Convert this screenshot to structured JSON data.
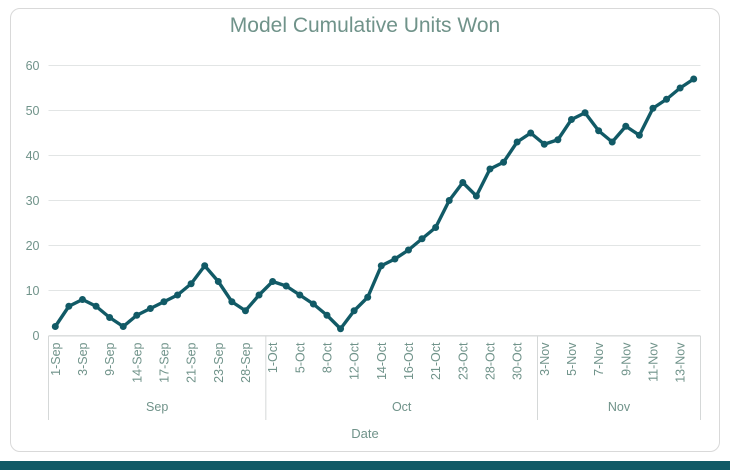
{
  "chart_data": {
    "type": "line",
    "title": "Model Cumulative Units Won",
    "xlabel": "Date",
    "ylabel": "",
    "ylim": [
      0,
      60
    ],
    "y_ticks": [
      0,
      10,
      20,
      30,
      40,
      50,
      60
    ],
    "grid": true,
    "legend": false,
    "tick_label_every": 2,
    "x_tick_labels": [
      "1-Sep",
      "3-Sep",
      "9-Sep",
      "14-Sep",
      "17-Sep",
      "21-Sep",
      "23-Sep",
      "28-Sep",
      "1-Oct",
      "5-Oct",
      "8-Oct",
      "12-Oct",
      "14-Oct",
      "16-Oct",
      "21-Oct",
      "23-Oct",
      "28-Oct",
      "30-Oct",
      "3-Nov",
      "5-Nov",
      "7-Nov",
      "9-Nov",
      "11-Nov",
      "13-Nov"
    ],
    "month_groups": [
      {
        "label": "Sep",
        "points": 16
      },
      {
        "label": "Oct",
        "points": 20
      },
      {
        "label": "Nov",
        "points": 12
      }
    ],
    "series": [
      {
        "name": "Model Cumulative Units Won",
        "values": [
          2,
          6.5,
          8,
          6.5,
          4,
          2,
          4.5,
          6,
          7.5,
          9,
          11.5,
          15.5,
          12,
          7.5,
          5.5,
          9,
          12,
          11,
          9,
          7,
          4.5,
          1.5,
          5.5,
          8.5,
          15.5,
          17,
          19,
          21.5,
          24,
          30,
          34,
          31,
          37,
          38.5,
          43,
          45,
          42.5,
          43.5,
          48,
          49.5,
          45.5,
          43,
          46.5,
          44.5,
          50.5,
          52.5,
          55,
          57
        ]
      }
    ],
    "colors": {
      "series_line": "#115a66",
      "marker": "#115a66",
      "title_text": "#70938a",
      "axis_text": "#70938a",
      "gridline": "#e2e5e5",
      "axis_line": "#d5d8d8",
      "frame_border": "#d9d9d9",
      "accent_bar": "#115a66",
      "background": "#ffffff"
    }
  }
}
